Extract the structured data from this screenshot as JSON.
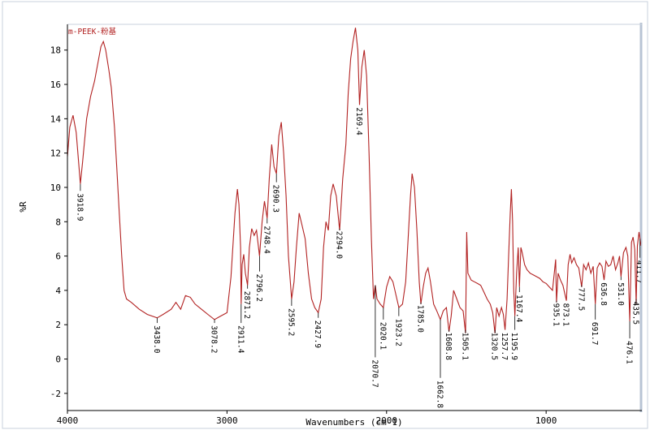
{
  "chart_data": {
    "type": "line",
    "title": "m-PEEK-粉基",
    "xlabel": "Wavenumbers (cm-1)",
    "ylabel": "%R",
    "xlim": [
      4000,
      400
    ],
    "ylim": [
      -3,
      19.5
    ],
    "x_reversed": true,
    "grid": false,
    "colors": {
      "line": "#b22222",
      "axis": "#000000",
      "frame": "#b8c4d4"
    },
    "x_ticks": [
      4000,
      3000,
      2000,
      1000
    ],
    "y_ticks": [
      -2,
      0,
      2,
      4,
      6,
      8,
      10,
      12,
      14,
      16,
      18
    ],
    "series": [
      {
        "name": "",
        "points": [
          [
            4000,
            11.8
          ],
          [
            3985,
            13.5
          ],
          [
            3965,
            14.2
          ],
          [
            3945,
            13.2
          ],
          [
            3930,
            11.5
          ],
          [
            3918.9,
            10.2
          ],
          [
            3905,
            11.5
          ],
          [
            3880,
            14.0
          ],
          [
            3855,
            15.3
          ],
          [
            3830,
            16.2
          ],
          [
            3810,
            17.2
          ],
          [
            3790,
            18.2
          ],
          [
            3775,
            18.5
          ],
          [
            3760,
            18.0
          ],
          [
            3740,
            16.8
          ],
          [
            3725,
            15.8
          ],
          [
            3705,
            13.5
          ],
          [
            3690,
            11.0
          ],
          [
            3675,
            8.5
          ],
          [
            3660,
            6.0
          ],
          [
            3645,
            4.0
          ],
          [
            3630,
            3.5
          ],
          [
            3600,
            3.3
          ],
          [
            3550,
            2.9
          ],
          [
            3500,
            2.6
          ],
          [
            3438,
            2.4
          ],
          [
            3400,
            2.6
          ],
          [
            3350,
            2.9
          ],
          [
            3320,
            3.3
          ],
          [
            3290,
            2.9
          ],
          [
            3260,
            3.7
          ],
          [
            3230,
            3.6
          ],
          [
            3200,
            3.2
          ],
          [
            3160,
            2.9
          ],
          [
            3120,
            2.6
          ],
          [
            3078.2,
            2.3
          ],
          [
            3040,
            2.5
          ],
          [
            3000,
            2.7
          ],
          [
            2975,
            4.8
          ],
          [
            2950,
            8.5
          ],
          [
            2935,
            9.9
          ],
          [
            2925,
            9.0
          ],
          [
            2915,
            6.5
          ],
          [
            2911.4,
            3.2
          ],
          [
            2905,
            5.5
          ],
          [
            2895,
            6.1
          ],
          [
            2885,
            5.0
          ],
          [
            2871.2,
            4.3
          ],
          [
            2860,
            6.5
          ],
          [
            2845,
            7.6
          ],
          [
            2830,
            7.2
          ],
          [
            2815,
            7.5
          ],
          [
            2796.2,
            6.0
          ],
          [
            2780,
            8.0
          ],
          [
            2765,
            9.2
          ],
          [
            2748.4,
            8.2
          ],
          [
            2735,
            10.5
          ],
          [
            2720,
            12.5
          ],
          [
            2705,
            11.2
          ],
          [
            2690.3,
            10.8
          ],
          [
            2675,
            13.0
          ],
          [
            2660,
            13.8
          ],
          [
            2645,
            12.0
          ],
          [
            2630,
            9.5
          ],
          [
            2615,
            6.0
          ],
          [
            2595.2,
            3.5
          ],
          [
            2580,
            4.5
          ],
          [
            2565,
            6.5
          ],
          [
            2548,
            8.5
          ],
          [
            2530,
            7.8
          ],
          [
            2510,
            7.0
          ],
          [
            2490,
            5.0
          ],
          [
            2470,
            3.5
          ],
          [
            2450,
            3.0
          ],
          [
            2427.9,
            2.7
          ],
          [
            2410,
            3.5
          ],
          [
            2395,
            6.5
          ],
          [
            2380,
            8.0
          ],
          [
            2365,
            7.5
          ],
          [
            2350,
            9.5
          ],
          [
            2335,
            10.2
          ],
          [
            2315,
            9.5
          ],
          [
            2294,
            7.5
          ],
          [
            2275,
            10.5
          ],
          [
            2255,
            12.5
          ],
          [
            2240,
            15.5
          ],
          [
            2225,
            17.5
          ],
          [
            2210,
            18.5
          ],
          [
            2195,
            19.3
          ],
          [
            2180,
            18.0
          ],
          [
            2169.4,
            14.8
          ],
          [
            2155,
            17.0
          ],
          [
            2140,
            18.0
          ],
          [
            2125,
            16.5
          ],
          [
            2110,
            12.0
          ],
          [
            2095,
            7.0
          ],
          [
            2082,
            3.5
          ],
          [
            2070.7,
            4.3
          ],
          [
            2060,
            3.5
          ],
          [
            2040,
            3.2
          ],
          [
            2020.1,
            3.0
          ],
          [
            2000,
            4.2
          ],
          [
            1980,
            4.8
          ],
          [
            1960,
            4.5
          ],
          [
            1923.2,
            3.0
          ],
          [
            1900,
            3.2
          ],
          [
            1880,
            4.5
          ],
          [
            1865,
            7.0
          ],
          [
            1850,
            9.5
          ],
          [
            1840,
            10.8
          ],
          [
            1825,
            10.0
          ],
          [
            1810,
            7.5
          ],
          [
            1795,
            4.5
          ],
          [
            1785,
            3.2
          ],
          [
            1770,
            4.2
          ],
          [
            1755,
            5.0
          ],
          [
            1740,
            5.3
          ],
          [
            1725,
            4.5
          ],
          [
            1705,
            3.2
          ],
          [
            1685,
            2.8
          ],
          [
            1662.8,
            2.3
          ],
          [
            1645,
            2.8
          ],
          [
            1625,
            3.0
          ],
          [
            1608.8,
            1.6
          ],
          [
            1595,
            2.5
          ],
          [
            1580,
            4.0
          ],
          [
            1560,
            3.5
          ],
          [
            1540,
            3.0
          ],
          [
            1520,
            2.8
          ],
          [
            1505.1,
            1.5
          ],
          [
            1498,
            7.4
          ],
          [
            1490,
            5.0
          ],
          [
            1470,
            4.6
          ],
          [
            1450,
            4.5
          ],
          [
            1430,
            4.4
          ],
          [
            1410,
            4.3
          ],
          [
            1390,
            3.9
          ],
          [
            1370,
            3.5
          ],
          [
            1350,
            3.2
          ],
          [
            1335,
            2.7
          ],
          [
            1320.5,
            1.5
          ],
          [
            1310,
            3.0
          ],
          [
            1295,
            2.5
          ],
          [
            1280,
            3.0
          ],
          [
            1268,
            2.6
          ],
          [
            1257.7,
            1.7
          ],
          [
            1245,
            3.5
          ],
          [
            1235,
            6.0
          ],
          [
            1225,
            8.5
          ],
          [
            1218,
            9.9
          ],
          [
            1210,
            8.0
          ],
          [
            1203,
            4.0
          ],
          [
            1195.9,
            2.5
          ],
          [
            1185,
            5.0
          ],
          [
            1175,
            6.5
          ],
          [
            1167.4,
            4.2
          ],
          [
            1158,
            6.5
          ],
          [
            1150,
            6.2
          ],
          [
            1135,
            5.5
          ],
          [
            1120,
            5.2
          ],
          [
            1100,
            5.0
          ],
          [
            1080,
            4.9
          ],
          [
            1060,
            4.8
          ],
          [
            1040,
            4.7
          ],
          [
            1020,
            4.5
          ],
          [
            1000,
            4.4
          ],
          [
            980,
            4.2
          ],
          [
            960,
            4.0
          ],
          [
            940,
            5.8
          ],
          [
            935.1,
            3.3
          ],
          [
            925,
            5.0
          ],
          [
            910,
            4.6
          ],
          [
            895,
            4.3
          ],
          [
            873.1,
            3.4
          ],
          [
            862,
            5.5
          ],
          [
            850,
            6.1
          ],
          [
            840,
            5.6
          ],
          [
            825,
            5.9
          ],
          [
            810,
            5.5
          ],
          [
            795,
            5.3
          ],
          [
            777.5,
            4.2
          ],
          [
            765,
            5.5
          ],
          [
            750,
            5.2
          ],
          [
            735,
            5.6
          ],
          [
            720,
            5.0
          ],
          [
            705,
            5.4
          ],
          [
            691.7,
            3.2
          ],
          [
            680,
            5.3
          ],
          [
            665,
            5.6
          ],
          [
            650,
            5.4
          ],
          [
            636.8,
            4.6
          ],
          [
            625,
            5.7
          ],
          [
            610,
            5.4
          ],
          [
            595,
            5.5
          ],
          [
            580,
            6.0
          ],
          [
            565,
            5.2
          ],
          [
            550,
            5.6
          ],
          [
            540,
            6.0
          ],
          [
            531,
            4.8
          ],
          [
            515,
            6.2
          ],
          [
            500,
            6.5
          ],
          [
            488,
            6.0
          ],
          [
            476.1,
            2.2
          ],
          [
            465,
            6.8
          ],
          [
            455,
            7.1
          ],
          [
            445,
            6.4
          ],
          [
            435.5,
            3.2
          ],
          [
            428,
            6.6
          ],
          [
            418,
            7.4
          ],
          [
            411.7,
            7.0
          ],
          [
            405,
            6.6
          ]
        ]
      }
    ],
    "peak_labels": [
      {
        "x": 3918.9,
        "text": "3918.9",
        "line_to": 10.2,
        "label_top": 9.8
      },
      {
        "x": 3438,
        "text": "3438.0",
        "line_to": 2.4,
        "label_top": 2.1
      },
      {
        "x": 3078.2,
        "text": "3078.2",
        "line_to": 2.3,
        "label_top": 2.1
      },
      {
        "x": 2911.4,
        "text": "2911.4",
        "line_to": 3.2,
        "label_top": 2.1
      },
      {
        "x": 2871.2,
        "text": "2871.2",
        "line_to": 4.3,
        "label_top": 4.1
      },
      {
        "x": 2796.2,
        "text": "2796.2",
        "line_to": 6.0,
        "label_top": 5.1
      },
      {
        "x": 2748.4,
        "text": "2748.4",
        "line_to": 8.2,
        "label_top": 7.9
      },
      {
        "x": 2690.3,
        "text": "2690.3",
        "line_to": 10.8,
        "label_top": 10.3
      },
      {
        "x": 2595.2,
        "text": "2595.2",
        "line_to": 3.5,
        "label_top": 3.1
      },
      {
        "x": 2427.9,
        "text": "2427.9",
        "line_to": 2.7,
        "label_top": 2.4
      },
      {
        "x": 2294,
        "text": "2294.0",
        "line_to": 7.5,
        "label_top": 7.6
      },
      {
        "x": 2169.4,
        "text": "2169.4",
        "line_to": 14.8,
        "label_top": 14.8
      },
      {
        "x": 2070.7,
        "text": "2070.7",
        "line_to": 4.3,
        "label_top": 0.1
      },
      {
        "x": 2020.1,
        "text": "2020.1",
        "line_to": 3.0,
        "label_top": 2.3
      },
      {
        "x": 1923.2,
        "text": "1923.2",
        "line_to": 3.0,
        "label_top": 2.5
      },
      {
        "x": 1785,
        "text": "1785.0",
        "line_to": 3.2,
        "label_top": 3.3
      },
      {
        "x": 1662.8,
        "text": "1662.8",
        "line_to": 2.3,
        "label_top": -1.1
      },
      {
        "x": 1608.8,
        "text": "1608.8",
        "line_to": 1.6,
        "label_top": 1.7
      },
      {
        "x": 1505.1,
        "text": "1505.1",
        "line_to": 1.5,
        "label_top": 1.7
      },
      {
        "x": 1320.5,
        "text": "1320.5",
        "line_to": 1.5,
        "label_top": 1.7
      },
      {
        "x": 1257.7,
        "text": "1257.7",
        "line_to": 1.7,
        "label_top": 1.7
      },
      {
        "x": 1195.9,
        "text": "1195.9",
        "line_to": 2.5,
        "label_top": 1.7
      },
      {
        "x": 1167.4,
        "text": "1167.4",
        "line_to": 4.2,
        "label_top": 3.9
      },
      {
        "x": 935.1,
        "text": "935.1",
        "line_to": 3.3,
        "label_top": 3.4
      },
      {
        "x": 873.1,
        "text": "873.1",
        "line_to": 3.4,
        "label_top": 3.4
      },
      {
        "x": 777.5,
        "text": "777.5",
        "line_to": 4.2,
        "label_top": 4.3
      },
      {
        "x": 691.7,
        "text": "691.7",
        "line_to": 3.2,
        "label_top": 2.3
      },
      {
        "x": 636.8,
        "text": "636.8",
        "line_to": 4.6,
        "label_top": 4.6
      },
      {
        "x": 531,
        "text": "531.0",
        "line_to": 4.8,
        "label_top": 4.6
      },
      {
        "x": 476.1,
        "text": "476.1",
        "line_to": 2.2,
        "label_top": 1.2
      },
      {
        "x": 435.5,
        "text": "435.5",
        "line_to": 3.2,
        "label_top": 3.5
      },
      {
        "x": 411.7,
        "text": "411.7",
        "line_to": 7.0,
        "label_top": 5.9
      }
    ]
  }
}
